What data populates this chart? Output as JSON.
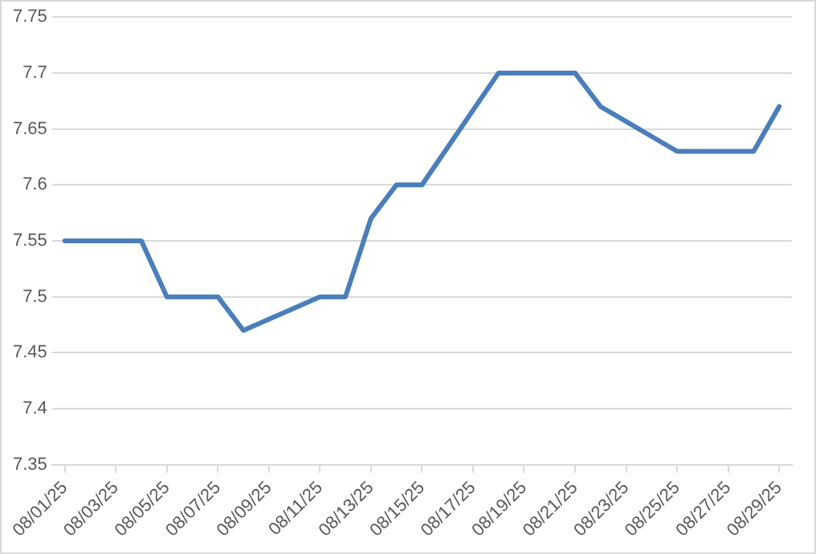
{
  "chart_data": {
    "type": "line",
    "x": [
      "--08-01",
      "--08-04",
      "--08-05",
      "--08-06",
      "--08-07",
      "--08-08",
      "--08-11",
      "--08-12",
      "--08-13",
      "--08-14",
      "--08-15",
      "--08-18",
      "--08-19",
      "--08-20",
      "--08-21",
      "--08-22",
      "--08-25",
      "--08-26",
      "--08-27",
      "--08-28",
      "--08-29"
    ],
    "series": [
      {
        "color": "#4a7ebb",
        "values": [
          7.55,
          7.55,
          7.5,
          7.5,
          7.5,
          7.47,
          7.5,
          7.5,
          7.57,
          7.6,
          7.6,
          7.7,
          7.7,
          7.7,
          7.7,
          7.67,
          7.63,
          7.63,
          7.63,
          7.63,
          7.67
        ]
      }
    ],
    "xlim": [
      "--07-31T12:00",
      "--08-29T12:00"
    ],
    "xticks": [
      {
        "value": "--08-01",
        "label": "08/01/25"
      },
      {
        "value": "--08-03",
        "label": "08/03/25"
      },
      {
        "value": "--08-05",
        "label": "08/05/25"
      },
      {
        "value": "--08-07",
        "label": "08/07/25"
      },
      {
        "value": "--08-09",
        "label": "08/09/25"
      },
      {
        "value": "--08-11",
        "label": "08/11/25"
      },
      {
        "value": "--08-13",
        "label": "08/13/25"
      },
      {
        "value": "--08-15",
        "label": "08/15/25"
      },
      {
        "value": "--08-17",
        "label": "08/17/25"
      },
      {
        "value": "--08-19",
        "label": "08/19/25"
      },
      {
        "value": "--08-21",
        "label": "08/21/25"
      },
      {
        "value": "--08-23",
        "label": "08/23/25"
      },
      {
        "value": "--08-25",
        "label": "08/25/25"
      },
      {
        "value": "--08-27",
        "label": "08/27/25"
      },
      {
        "value": "--08-29",
        "label": "08/29/25"
      }
    ],
    "ylim": [
      7.35,
      7.75
    ],
    "yticks": [
      7.35,
      7.4,
      7.45,
      7.5,
      7.55,
      7.6,
      7.65,
      7.7,
      7.75
    ],
    "grid": "y",
    "legend": false,
    "marker": "none",
    "line_style": "solid"
  }
}
